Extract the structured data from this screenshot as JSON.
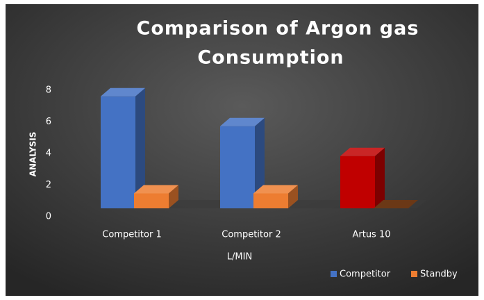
{
  "chart_data": {
    "type": "bar3d",
    "title": [
      "Comparison of Argon gas",
      "Consumption"
    ],
    "categories": [
      "Competitor 1",
      "Competitor 2",
      "Artus 10"
    ],
    "series": [
      {
        "name": "Competitor",
        "color": "#4472c4",
        "point_colors": [
          "#4472c4",
          "#4472c4",
          "#c00000"
        ],
        "values": [
          7.5,
          5.5,
          3.5
        ]
      },
      {
        "name": "Standby",
        "color": "#ed7d31",
        "values": [
          1,
          1,
          0
        ]
      }
    ],
    "xlabel": "L/MIN",
    "ylabel": "ANALYSIS",
    "ylim": [
      0,
      8
    ],
    "yticks": [
      0,
      2,
      4,
      6,
      8
    ],
    "grid": false,
    "legend": "bottom-right"
  }
}
